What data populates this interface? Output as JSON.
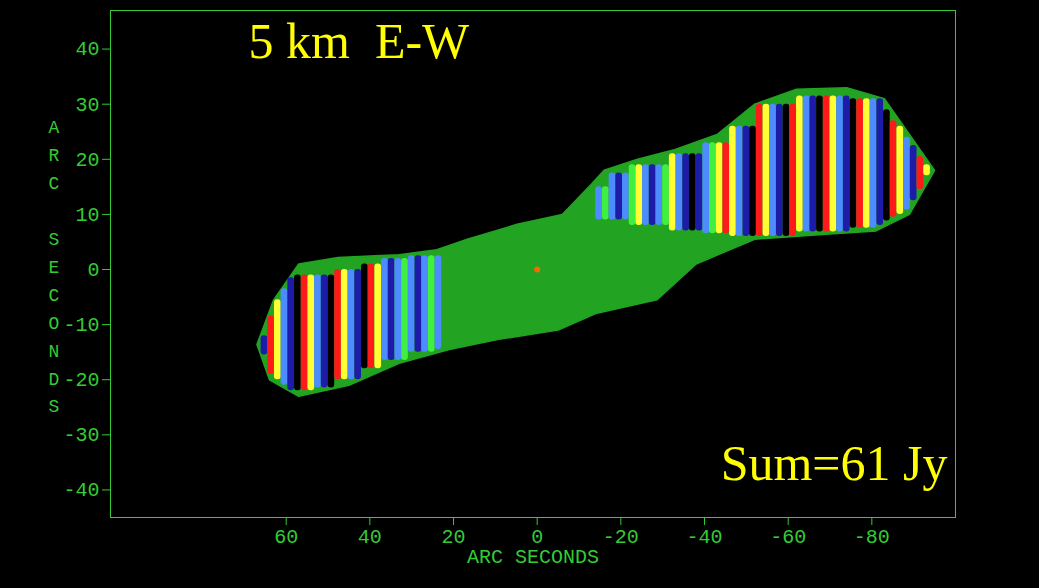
{
  "chart_data": {
    "type": "image",
    "annotations": [
      "5 km  E-W",
      "Sum=61 Jy"
    ],
    "xlabel": "ARC SECONDS",
    "ylabel": "ARC SECONDS",
    "xlim": [
      102,
      -100
    ],
    "ylim": [
      -45,
      47
    ],
    "xticks": [
      60,
      40,
      20,
      0,
      -20,
      -40,
      -60,
      -80
    ],
    "yticks": [
      40,
      30,
      20,
      10,
      0,
      -10,
      -20,
      -30,
      -40
    ],
    "emission": {
      "color": "#22a322",
      "x": [
        67,
        63,
        57,
        47.6,
        33,
        24,
        16.7,
        4.8,
        -6,
        -13,
        -16,
        -24,
        -33,
        -43,
        -52,
        -62,
        -74,
        -83,
        -95,
        -89,
        -81,
        -69,
        -52,
        -38,
        -28.6,
        -14,
        -5,
        9.5,
        21,
        33,
        45,
        57,
        64
      ],
      "y": [
        -13.6,
        -5.5,
        1,
        2.2,
        2.7,
        3.6,
        5.5,
        8.2,
        10,
        15.5,
        18,
        20,
        21.8,
        24.5,
        30,
        32.7,
        33,
        31,
        18,
        10,
        7,
        6.4,
        5.5,
        1,
        -5.5,
        -8,
        -11,
        -12.7,
        -14.5,
        -17,
        -21,
        -23,
        -20
      ]
    },
    "core": {
      "x": 0,
      "y": 0,
      "color": "#ff6600"
    },
    "fringes": [
      {
        "x1": 66,
        "x2": 64.4,
        "y1": -15.5,
        "y2": -12,
        "color": "#1c1ca8"
      },
      {
        "x1": 64.4,
        "x2": 62.8,
        "y1": -19,
        "y2": -8.5,
        "color": "#ff1a1a"
      },
      {
        "x1": 62.8,
        "x2": 61.2,
        "y1": -20,
        "y2": -5.5,
        "color": "#ffff33"
      },
      {
        "x1": 61.2,
        "x2": 59.6,
        "y1": -21,
        "y2": -3.5,
        "color": "#4d8cff"
      },
      {
        "x1": 59.6,
        "x2": 58,
        "y1": -22,
        "y2": -1.5,
        "color": "#1c1ca8"
      },
      {
        "x1": 58,
        "x2": 56.4,
        "y1": -22,
        "y2": -1,
        "color": "#000000"
      },
      {
        "x1": 56.4,
        "x2": 54.8,
        "y1": -22,
        "y2": -1,
        "color": "#ff1a1a"
      },
      {
        "x1": 54.8,
        "x2": 53.2,
        "y1": -22,
        "y2": -1,
        "color": "#ffff33"
      },
      {
        "x1": 53.2,
        "x2": 51.6,
        "y1": -21.5,
        "y2": -1,
        "color": "#4d8cff"
      },
      {
        "x1": 51.6,
        "x2": 50,
        "y1": -21.5,
        "y2": -1,
        "color": "#1c1ca8"
      },
      {
        "x1": 50,
        "x2": 48.4,
        "y1": -21.5,
        "y2": -1,
        "color": "#000000"
      },
      {
        "x1": 48.4,
        "x2": 46.8,
        "y1": -20,
        "y2": 0,
        "color": "#ff1a1a"
      },
      {
        "x1": 46.8,
        "x2": 45.2,
        "y1": -20,
        "y2": 0,
        "color": "#ffff33"
      },
      {
        "x1": 45.2,
        "x2": 43.6,
        "y1": -20,
        "y2": 0,
        "color": "#4d8cff"
      },
      {
        "x1": 43.6,
        "x2": 42,
        "y1": -20,
        "y2": 0,
        "color": "#1c1ca8"
      },
      {
        "x1": 42,
        "x2": 40.4,
        "y1": -18,
        "y2": 1,
        "color": "#000000"
      },
      {
        "x1": 40.4,
        "x2": 38.8,
        "y1": -18,
        "y2": 1,
        "color": "#ff1a1a"
      },
      {
        "x1": 38.8,
        "x2": 37.2,
        "y1": -18,
        "y2": 1,
        "color": "#ffff33"
      },
      {
        "x1": 37.2,
        "x2": 35.6,
        "y1": -16.5,
        "y2": 2,
        "color": "#4d8cff"
      },
      {
        "x1": 35.6,
        "x2": 34,
        "y1": -16.5,
        "y2": 2,
        "color": "#1c1ca8"
      },
      {
        "x1": 34,
        "x2": 32.4,
        "y1": -16.5,
        "y2": 2,
        "color": "#4d8cff"
      },
      {
        "x1": 32.4,
        "x2": 30.8,
        "y1": -16.5,
        "y2": 2,
        "color": "#40f040"
      },
      {
        "x1": 30.8,
        "x2": 29.2,
        "y1": -15,
        "y2": 2.5,
        "color": "#4d8cff"
      },
      {
        "x1": 29.2,
        "x2": 27.6,
        "y1": -15,
        "y2": 2.5,
        "color": "#1c1ca8"
      },
      {
        "x1": 27.6,
        "x2": 26,
        "y1": -15,
        "y2": 2.5,
        "color": "#4d8cff"
      },
      {
        "x1": 26,
        "x2": 24.4,
        "y1": -15,
        "y2": 2.5,
        "color": "#40f040"
      },
      {
        "x1": 24.4,
        "x2": 22.8,
        "y1": -14.5,
        "y2": 2.5,
        "color": "#4d8cff"
      },
      {
        "x1": -14,
        "x2": -15.6,
        "y1": 9,
        "y2": 15,
        "color": "#4d8cff"
      },
      {
        "x1": -15.6,
        "x2": -17.2,
        "y1": 9,
        "y2": 15,
        "color": "#40f040"
      },
      {
        "x1": -17.2,
        "x2": -18.8,
        "y1": 9,
        "y2": 17.5,
        "color": "#4d8cff"
      },
      {
        "x1": -18.8,
        "x2": -20.4,
        "y1": 9,
        "y2": 17.5,
        "color": "#1c1ca8"
      },
      {
        "x1": -20.4,
        "x2": -22,
        "y1": 9,
        "y2": 17.5,
        "color": "#4d8cff"
      },
      {
        "x1": -22,
        "x2": -23.6,
        "y1": 8,
        "y2": 19,
        "color": "#40f040"
      },
      {
        "x1": -23.6,
        "x2": -25.2,
        "y1": 8,
        "y2": 19,
        "color": "#ffff33"
      },
      {
        "x1": -25.2,
        "x2": -26.8,
        "y1": 8,
        "y2": 19,
        "color": "#4d8cff"
      },
      {
        "x1": -26.8,
        "x2": -28.4,
        "y1": 8,
        "y2": 19,
        "color": "#1c1ca8"
      },
      {
        "x1": -28.4,
        "x2": -30,
        "y1": 8,
        "y2": 19,
        "color": "#4d8cff"
      },
      {
        "x1": -30,
        "x2": -31.6,
        "y1": 8,
        "y2": 19,
        "color": "#40f040"
      },
      {
        "x1": -31.6,
        "x2": -33.2,
        "y1": 7,
        "y2": 21,
        "color": "#ffff33"
      },
      {
        "x1": -33.2,
        "x2": -34.8,
        "y1": 7,
        "y2": 21,
        "color": "#4d8cff"
      },
      {
        "x1": -34.8,
        "x2": -36.4,
        "y1": 7,
        "y2": 21,
        "color": "#1c1ca8"
      },
      {
        "x1": -36.4,
        "x2": -38,
        "y1": 7,
        "y2": 21,
        "color": "#000000"
      },
      {
        "x1": -38,
        "x2": -39.6,
        "y1": 7,
        "y2": 21,
        "color": "#1c1ca8"
      },
      {
        "x1": -39.6,
        "x2": -41.2,
        "y1": 6.5,
        "y2": 23,
        "color": "#4d8cff"
      },
      {
        "x1": -41.2,
        "x2": -42.8,
        "y1": 6.5,
        "y2": 23,
        "color": "#40f040"
      },
      {
        "x1": -42.8,
        "x2": -44.4,
        "y1": 6.5,
        "y2": 23,
        "color": "#ffff33"
      },
      {
        "x1": -44.4,
        "x2": -46,
        "y1": 6.5,
        "y2": 23,
        "color": "#ff1a1a"
      },
      {
        "x1": -46,
        "x2": -47.6,
        "y1": 6,
        "y2": 26,
        "color": "#ffff33"
      },
      {
        "x1": -47.6,
        "x2": -49.2,
        "y1": 6,
        "y2": 26,
        "color": "#4d8cff"
      },
      {
        "x1": -49.2,
        "x2": -50.8,
        "y1": 6,
        "y2": 26,
        "color": "#1c1ca8"
      },
      {
        "x1": -50.8,
        "x2": -52.4,
        "y1": 6,
        "y2": 26,
        "color": "#000000"
      },
      {
        "x1": -52.4,
        "x2": -54,
        "y1": 6,
        "y2": 30,
        "color": "#ff1a1a"
      },
      {
        "x1": -54,
        "x2": -55.6,
        "y1": 6,
        "y2": 30,
        "color": "#ffff33"
      },
      {
        "x1": -55.6,
        "x2": -57.2,
        "y1": 6,
        "y2": 30,
        "color": "#4d8cff"
      },
      {
        "x1": -57.2,
        "x2": -58.8,
        "y1": 6,
        "y2": 30,
        "color": "#1c1ca8"
      },
      {
        "x1": -58.8,
        "x2": -60.4,
        "y1": 6,
        "y2": 30,
        "color": "#000000"
      },
      {
        "x1": -60.4,
        "x2": -62,
        "y1": 6,
        "y2": 30,
        "color": "#ff1a1a"
      },
      {
        "x1": -62,
        "x2": -63.6,
        "y1": 6.8,
        "y2": 31.5,
        "color": "#ffff33"
      },
      {
        "x1": -63.6,
        "x2": -65.2,
        "y1": 6.8,
        "y2": 31.5,
        "color": "#4d8cff"
      },
      {
        "x1": -65.2,
        "x2": -66.8,
        "y1": 6.8,
        "y2": 31.5,
        "color": "#1c1ca8"
      },
      {
        "x1": -66.8,
        "x2": -68.4,
        "y1": 6.8,
        "y2": 31.5,
        "color": "#000000"
      },
      {
        "x1": -68.4,
        "x2": -70,
        "y1": 6.8,
        "y2": 31.5,
        "color": "#ff1a1a"
      },
      {
        "x1": -70,
        "x2": -71.6,
        "y1": 6.8,
        "y2": 31.5,
        "color": "#ffff33"
      },
      {
        "x1": -71.6,
        "x2": -73.2,
        "y1": 6.8,
        "y2": 31.5,
        "color": "#4d8cff"
      },
      {
        "x1": -73.2,
        "x2": -74.8,
        "y1": 6.8,
        "y2": 31.5,
        "color": "#1c1ca8"
      },
      {
        "x1": -74.8,
        "x2": -76.4,
        "y1": 7.5,
        "y2": 31,
        "color": "#000000"
      },
      {
        "x1": -76.4,
        "x2": -78,
        "y1": 7.5,
        "y2": 31,
        "color": "#ff1a1a"
      },
      {
        "x1": -78,
        "x2": -79.6,
        "y1": 7.5,
        "y2": 31,
        "color": "#ffff33"
      },
      {
        "x1": -79.6,
        "x2": -81.2,
        "y1": 7.5,
        "y2": 31,
        "color": "#4d8cff"
      },
      {
        "x1": -81.2,
        "x2": -82.8,
        "y1": 8,
        "y2": 31,
        "color": "#1c1ca8"
      },
      {
        "x1": -82.8,
        "x2": -84.4,
        "y1": 8.8,
        "y2": 29,
        "color": "#000000"
      },
      {
        "x1": -84.4,
        "x2": -86,
        "y1": 9.5,
        "y2": 27,
        "color": "#ff1a1a"
      },
      {
        "x1": -86,
        "x2": -87.6,
        "y1": 10,
        "y2": 26,
        "color": "#ffff33"
      },
      {
        "x1": -87.6,
        "x2": -89.2,
        "y1": 10.8,
        "y2": 24,
        "color": "#4d8cff"
      },
      {
        "x1": -89.2,
        "x2": -90.8,
        "y1": 12.5,
        "y2": 22.5,
        "color": "#1c1ca8"
      },
      {
        "x1": -90.8,
        "x2": -92.4,
        "y1": 14.5,
        "y2": 20.5,
        "color": "#ff1a1a"
      },
      {
        "x1": -92.4,
        "x2": -94,
        "y1": 17,
        "y2": 19,
        "color": "#ffff33"
      }
    ]
  }
}
